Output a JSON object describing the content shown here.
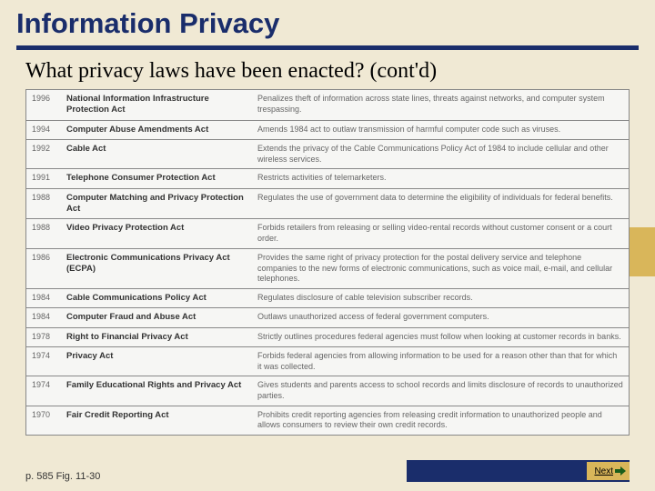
{
  "title": "Information Privacy",
  "subtitle": "What privacy laws have been enacted? (cont'd)",
  "rows": [
    {
      "year": "1996",
      "law": "National Information Infrastructure Protection Act",
      "desc": "Penalizes theft of information across state lines, threats against networks, and computer system trespassing."
    },
    {
      "year": "1994",
      "law": "Computer Abuse Amendments Act",
      "desc": "Amends 1984 act to outlaw transmission of harmful computer code such as viruses."
    },
    {
      "year": "1992",
      "law": "Cable Act",
      "desc": "Extends the privacy of the Cable Communications Policy Act of 1984 to include cellular and other wireless services."
    },
    {
      "year": "1991",
      "law": "Telephone Consumer Protection Act",
      "desc": "Restricts activities of telemarketers."
    },
    {
      "year": "1988",
      "law": "Computer Matching and Privacy Protection Act",
      "desc": "Regulates the use of government data to determine the eligibility of individuals for federal benefits."
    },
    {
      "year": "1988",
      "law": "Video Privacy Protection Act",
      "desc": "Forbids retailers from releasing or selling video-rental records without customer consent or a court order."
    },
    {
      "year": "1986",
      "law": "Electronic Communications Privacy Act (ECPA)",
      "desc": "Provides the same right of privacy protection for the postal delivery service and telephone companies to the new forms of electronic communications, such as voice mail, e-mail, and cellular telephones."
    },
    {
      "year": "1984",
      "law": "Cable Communications Policy Act",
      "desc": "Regulates disclosure of cable television subscriber records."
    },
    {
      "year": "1984",
      "law": "Computer Fraud and Abuse Act",
      "desc": "Outlaws unauthorized access of federal government computers."
    },
    {
      "year": "1978",
      "law": "Right to Financial Privacy Act",
      "desc": "Strictly outlines procedures federal agencies must follow when looking at customer records in banks."
    },
    {
      "year": "1974",
      "law": "Privacy Act",
      "desc": "Forbids federal agencies from allowing information to be used for a reason other than that for which it was collected."
    },
    {
      "year": "1974",
      "law": "Family Educational Rights and Privacy Act",
      "desc": "Gives students and parents access to school records and limits disclosure of records to unauthorized parties."
    },
    {
      "year": "1970",
      "law": "Fair Credit Reporting Act",
      "desc": "Prohibits credit reporting agencies from releasing credit information to unauthorized people and allows consumers to review their own credit records."
    }
  ],
  "footer": "p. 585 Fig. 11-30",
  "next_label": "Next",
  "colors": {
    "primary": "#1a2d6b",
    "accent": "#d9b65a",
    "background": "#f0e9d4"
  }
}
